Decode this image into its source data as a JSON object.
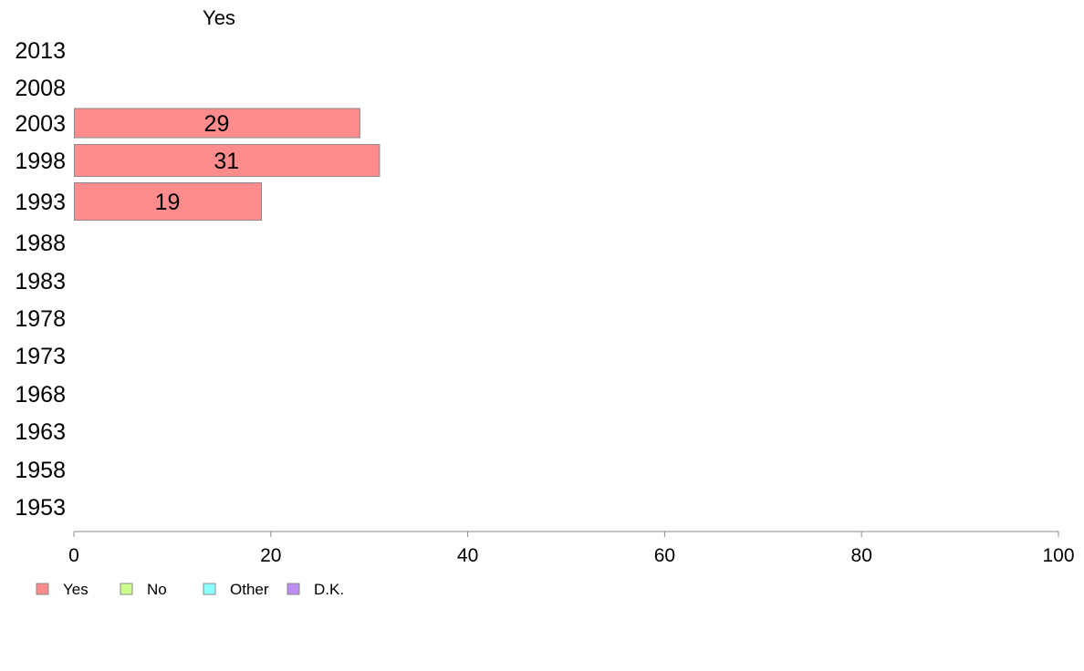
{
  "chart_data": {
    "type": "bar",
    "orientation": "horizontal",
    "categories": [
      "2013",
      "2008",
      "2003",
      "1998",
      "1993",
      "1988",
      "1983",
      "1978",
      "1973",
      "1968",
      "1963",
      "1958",
      "1953"
    ],
    "series": [
      {
        "name": "Yes",
        "color": "#ff8c8c",
        "values": [
          null,
          null,
          29,
          31,
          19,
          null,
          null,
          null,
          null,
          null,
          null,
          null,
          null
        ]
      }
    ],
    "series_header": "Yes",
    "xlim": [
      0,
      100
    ],
    "xticks": [
      0,
      20,
      40,
      60,
      80,
      100
    ],
    "grid": false,
    "legend": {
      "placement": "bottom-left",
      "items": [
        {
          "label": "Yes",
          "color": "#ff8c8c"
        },
        {
          "label": "No",
          "color": "#ccff8c"
        },
        {
          "label": "Other",
          "color": "#8cffff"
        },
        {
          "label": "D.K.",
          "color": "#bf8cf2"
        }
      ]
    }
  }
}
